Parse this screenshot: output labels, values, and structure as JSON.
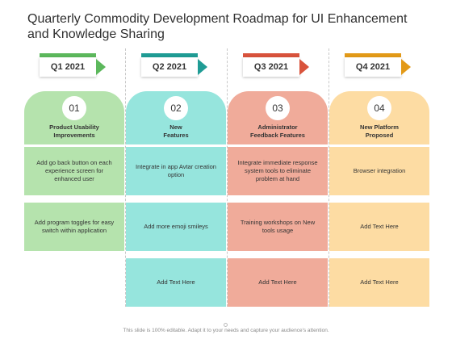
{
  "title": "Quarterly Commodity Development Roadmap for UI Enhancement and Knowledge Sharing",
  "footer": "This slide is 100% editable. Adapt it to your needs and capture your audience's attention.",
  "columns": [
    {
      "quarter": "Q1 2021",
      "number": "01",
      "heading_line1": "Product Usability",
      "heading_line2": "Improvements",
      "accent": "#5cb85c",
      "light": "#b5e3ad",
      "rows": [
        "Add go back button on each experience screen for enhanced user",
        "Add program toggles for easy switch within application",
        ""
      ]
    },
    {
      "quarter": "Q2 2021",
      "number": "02",
      "heading_line1": "New",
      "heading_line2": "Features",
      "accent": "#1f9c95",
      "light": "#96e5dd",
      "rows": [
        "Integrate in app Avtar creation option",
        "Add more emoji smileys",
        "Add Text Here"
      ]
    },
    {
      "quarter": "Q3 2021",
      "number": "03",
      "heading_line1": "Administrator",
      "heading_line2": "Feedback Features",
      "accent": "#d9533c",
      "light": "#f0ab9a",
      "rows": [
        "Integrate immediate response system tools to eliminate problem at hand",
        "Training workshops on New tools usage",
        "Add Text Here"
      ]
    },
    {
      "quarter": "Q4 2021",
      "number": "04",
      "heading_line1": "New Platform",
      "heading_line2": "Proposed",
      "accent": "#e39a18",
      "light": "#fddca3",
      "rows": [
        "Browser integration",
        "Add Text Here",
        "Add Text Here"
      ]
    }
  ]
}
